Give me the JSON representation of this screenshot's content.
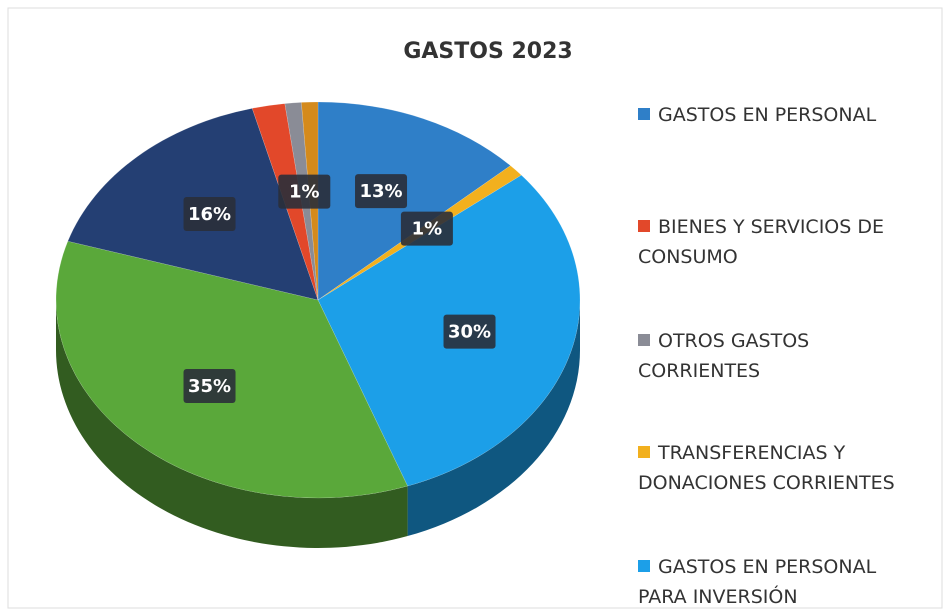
{
  "chart_data": {
    "type": "pie",
    "title": "GASTOS 2023",
    "categories": [
      "GASTOS EN PERSONAL",
      "TRANSFERENCIAS Y DONACIONES CORRIENTES",
      "GASTOS EN PERSONAL PARA INVERSIÓN",
      null,
      null,
      "BIENES Y SERVICIOS DE CONSUMO",
      "OTROS GASTOS CORRIENTES",
      null
    ],
    "values": [
      13,
      1,
      30,
      35,
      16,
      2,
      1,
      1
    ],
    "value_labels": [
      "13%",
      "1%",
      "30%",
      "35%",
      "16%",
      null,
      "1%",
      null
    ],
    "colors": [
      "#2f7fc8",
      "#f2b01e",
      "#1c9fe8",
      "#5aa83a",
      "#243f73",
      "#e2482a",
      "#8a8c96",
      "#d48a1c"
    ],
    "legend_order": [
      0,
      5,
      6,
      1,
      2
    ]
  }
}
